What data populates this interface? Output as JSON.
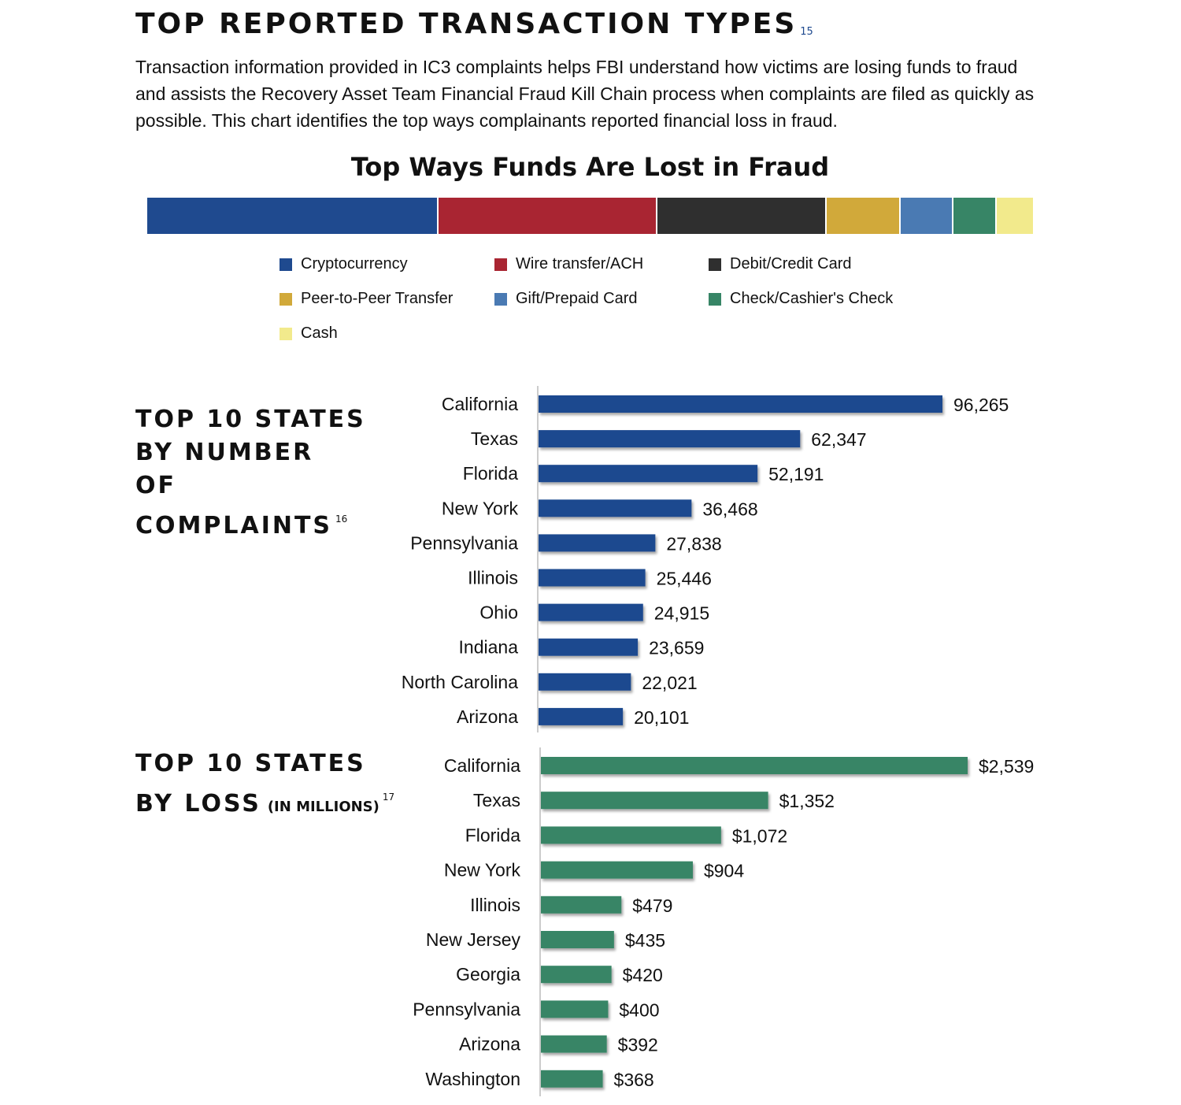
{
  "page": {
    "heading": "TOP REPORTED TRANSACTION TYPES",
    "heading_footnote": "15",
    "intro": "Transaction information provided in IC3 complaints helps FBI understand how victims are losing funds to fraud and assists the Recovery Asset Team Financial Fraud Kill Chain process when complaints are filed as quickly as possible. This chart identifies the top ways complainants reported financial loss in fraud."
  },
  "sections": {
    "complaints": {
      "title_lines": [
        "TOP 10 STATES",
        "BY NUMBER",
        "OF",
        "COMPLAINTS"
      ],
      "footnote": "16"
    },
    "loss": {
      "title_lines": [
        "TOP 10 STATES",
        "BY LOSS"
      ],
      "subtitle": "(IN MILLIONS)",
      "footnote": "17"
    }
  },
  "chart_data": [
    {
      "type": "bar",
      "orientation": "horizontal-stacked",
      "title": "Top Ways Funds Are Lost in Fraud",
      "axes": "none",
      "legend_position": "bottom",
      "series": [
        {
          "name": "Cryptocurrency",
          "share": 32.9,
          "color": "#1f4a8f"
        },
        {
          "name": "Wire transfer/ACH",
          "share": 24.7,
          "color": "#a92532"
        },
        {
          "name": "Debit/Credit Card",
          "share": 19.1,
          "color": "#2f2f2f"
        },
        {
          "name": "Peer-to-Peer Transfer",
          "share": 8.4,
          "color": "#d1a93a"
        },
        {
          "name": "Gift/Prepaid Card",
          "share": 5.9,
          "color": "#4a7ab3"
        },
        {
          "name": "Check/Cashier's Check",
          "share": 4.9,
          "color": "#378566"
        },
        {
          "name": "Cash",
          "share": 4.1,
          "color": "#f2ea8c"
        }
      ]
    },
    {
      "type": "bar",
      "orientation": "horizontal",
      "title": "TOP 10 STATES BY NUMBER OF COMPLAINTS",
      "color": "#1f4a8f",
      "categories": [
        "California",
        "Texas",
        "Florida",
        "New York",
        "Pennsylvania",
        "Illinois",
        "Ohio",
        "Indiana",
        "North Carolina",
        "Arizona"
      ],
      "values": [
        96265,
        62347,
        52191,
        36468,
        27838,
        25446,
        24915,
        23659,
        22021,
        20101
      ],
      "value_labels": [
        "96,265",
        "62,347",
        "52,191",
        "36,468",
        "27,838",
        "25,446",
        "24,915",
        "23,659",
        "22,021",
        "20,101"
      ],
      "xlim": [
        0,
        96265
      ],
      "grid": false
    },
    {
      "type": "bar",
      "orientation": "horizontal",
      "title": "TOP 10 STATES BY LOSS (IN MILLIONS)",
      "color": "#378566",
      "categories": [
        "California",
        "Texas",
        "Florida",
        "New York",
        "Illinois",
        "New Jersey",
        "Georgia",
        "Pennsylvania",
        "Arizona",
        "Washington"
      ],
      "values": [
        2539,
        1352,
        1072,
        904,
        479,
        435,
        420,
        400,
        392,
        368
      ],
      "value_labels": [
        "$2,539",
        "$1,352",
        "$1,072",
        "$904",
        "$479",
        "$435",
        "$420",
        "$400",
        "$392",
        "$368"
      ],
      "xlim": [
        0,
        2539
      ],
      "grid": false
    }
  ]
}
